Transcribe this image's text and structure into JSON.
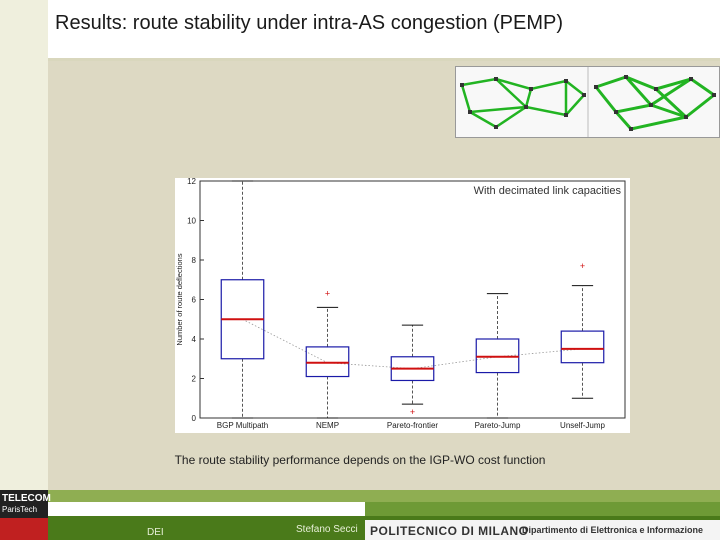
{
  "slide": {
    "title": "Results: route stability under intra-AS congestion (PEMP)",
    "caption": "The route stability performance depends on the IGP-WO cost function",
    "footer_left": "DEI",
    "footer_author": "Stefano Secci",
    "logo_left_line1": "TELECOM",
    "logo_left_line2": "ParisTech",
    "logo_bottom": "",
    "polimi_label": "POLITECNICO DI MILANO",
    "dept_label": "Dipartimento di Elettronica e Informazione"
  },
  "thumbnail": {
    "description_icon": "network-topology-icon",
    "accent": "#22b422"
  },
  "chart_data": {
    "type": "box",
    "title": "",
    "annotation": "With decimated link capacities",
    "ylabel": "Number of route deflections",
    "xlabel": "",
    "ylim": [
      0,
      12
    ],
    "yticks": [
      0,
      2,
      4,
      6,
      8,
      10,
      12
    ],
    "categories": [
      "BGP Multipath",
      "NEMP",
      "Pareto-frontier",
      "Pareto-Jump",
      "Unself-Jump"
    ],
    "boxes": [
      {
        "category": "BGP Multipath",
        "whisker_low": 0,
        "q1": 3,
        "median": 5,
        "q3": 7,
        "whisker_high": 12,
        "outliers": []
      },
      {
        "category": "NEMP",
        "whisker_low": 0,
        "q1": 2.1,
        "median": 2.8,
        "q3": 3.6,
        "whisker_high": 5.6,
        "outliers": [
          6.3
        ]
      },
      {
        "category": "Pareto-frontier",
        "whisker_low": 0.7,
        "q1": 1.9,
        "median": 2.5,
        "q3": 3.1,
        "whisker_high": 4.7,
        "outliers": [
          0.3
        ]
      },
      {
        "category": "Pareto-Jump",
        "whisker_low": 0,
        "q1": 2.3,
        "median": 3.1,
        "q3": 4.0,
        "whisker_high": 6.3,
        "outliers": []
      },
      {
        "category": "Unself-Jump",
        "whisker_low": 1.0,
        "q1": 2.8,
        "median": 3.5,
        "q3": 4.4,
        "whisker_high": 6.7,
        "outliers": [
          7.7
        ]
      }
    ],
    "colors": {
      "box": "#1a1aa8",
      "median": "#d01010",
      "whisker": "#555555",
      "outlier": "#d01010"
    }
  }
}
